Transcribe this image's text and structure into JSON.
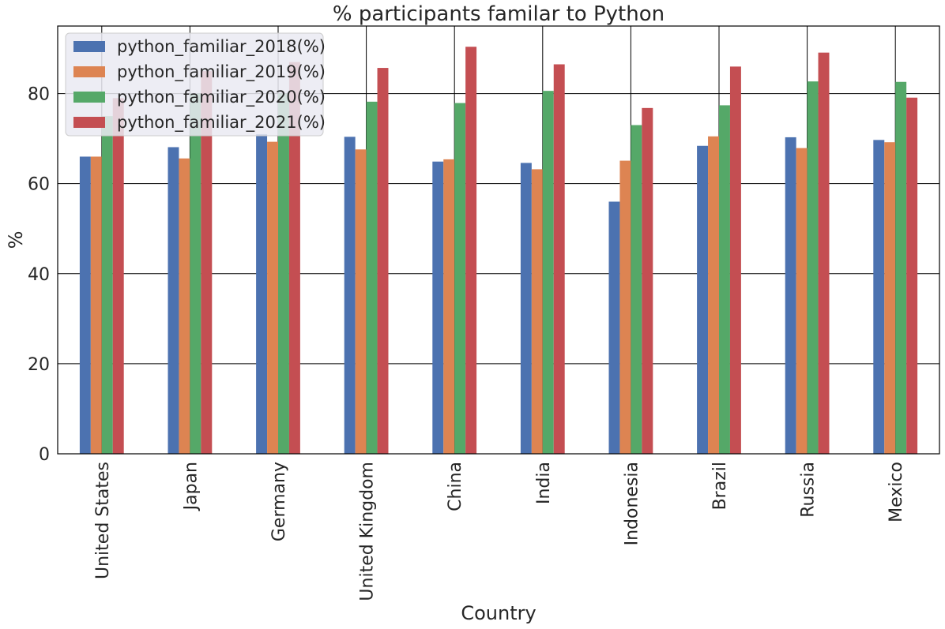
{
  "chart_data": {
    "type": "bar",
    "title": "% participants familar to Python",
    "xlabel": "Country",
    "ylabel": "%",
    "ylim": [
      0,
      95
    ],
    "yticks": [
      0,
      20,
      40,
      60,
      80
    ],
    "grid": true,
    "legend_position": "top-left",
    "categories": [
      "United States",
      "Japan",
      "Germany",
      "United Kingdom",
      "China",
      "India",
      "Indonesia",
      "Brazil",
      "Russia",
      "Mexico"
    ],
    "series": [
      {
        "name": "python_familiar_2018(%)",
        "color": "#4c72b0",
        "values": [
          66.0,
          68.1,
          71.0,
          70.4,
          64.9,
          64.6,
          56.0,
          68.4,
          70.3,
          69.7
        ]
      },
      {
        "name": "python_familiar_2019(%)",
        "color": "#dd8452",
        "values": [
          66.0,
          65.6,
          69.3,
          67.6,
          65.4,
          63.2,
          65.1,
          70.5,
          67.9,
          69.2
        ]
      },
      {
        "name": "python_familiar_2020(%)",
        "color": "#55a868",
        "values": [
          75.0,
          80.0,
          80.0,
          78.2,
          77.9,
          80.6,
          73.0,
          77.4,
          82.7,
          82.6
        ]
      },
      {
        "name": "python_familiar_2021(%)",
        "color": "#c44e52",
        "values": [
          79.0,
          85.0,
          87.0,
          85.7,
          90.4,
          86.5,
          76.8,
          86.0,
          89.1,
          79.1
        ]
      }
    ]
  }
}
